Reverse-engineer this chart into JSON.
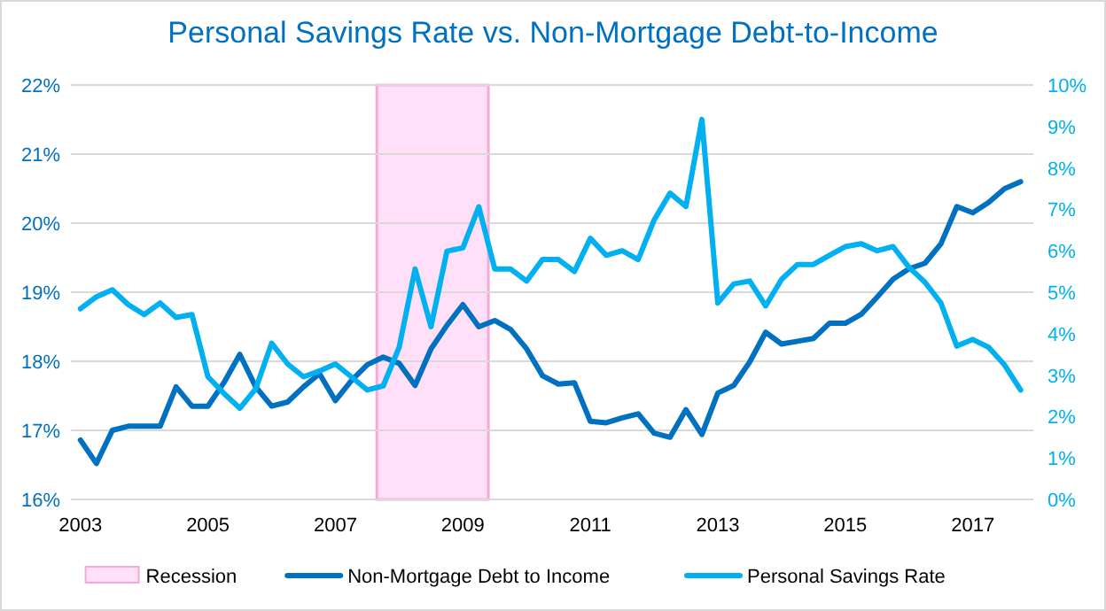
{
  "chart_data": {
    "type": "line",
    "title": "Personal Savings Rate vs. Non-Mortgage Debt-to-Income",
    "x": [
      2003,
      2003.25,
      2003.5,
      2003.75,
      2004,
      2004.25,
      2004.5,
      2004.75,
      2005,
      2005.25,
      2005.5,
      2005.75,
      2006,
      2006.25,
      2006.5,
      2006.75,
      2007,
      2007.25,
      2007.5,
      2007.75,
      2008,
      2008.25,
      2008.5,
      2008.75,
      2009,
      2009.25,
      2009.5,
      2009.75,
      2010,
      2010.25,
      2010.5,
      2010.75,
      2011,
      2011.25,
      2011.5,
      2011.75,
      2012,
      2012.25,
      2012.5,
      2012.75,
      2013,
      2013.25,
      2013.5,
      2013.75,
      2014,
      2014.25,
      2014.5,
      2014.75,
      2015,
      2015.25,
      2015.5,
      2015.75,
      2016,
      2016.25,
      2016.5,
      2016.75,
      2017,
      2017.25,
      2017.5,
      2017.75
    ],
    "series": [
      {
        "name": "Non-Mortgage Debt to Income",
        "color": "#0070c0",
        "values": [
          16.86,
          16.52,
          17.0,
          17.06,
          17.06,
          17.06,
          17.63,
          17.35,
          17.35,
          17.69,
          18.1,
          17.63,
          17.35,
          17.41,
          17.63,
          17.82,
          17.43,
          17.72,
          17.95,
          18.06,
          17.97,
          17.65,
          18.18,
          18.52,
          18.82,
          18.5,
          18.59,
          18.46,
          18.18,
          17.79,
          17.67,
          17.69,
          17.13,
          17.11,
          17.18,
          17.24,
          16.96,
          16.9,
          17.3,
          16.94,
          17.54,
          17.65,
          17.99,
          18.42,
          18.25,
          18.29,
          18.33,
          18.55,
          18.55,
          18.68,
          18.93,
          19.19,
          19.34,
          19.42,
          19.7,
          20.24,
          20.15,
          20.3,
          20.5,
          20.6
        ]
      },
      {
        "name": "Personal Savings Rate",
        "color": "#00b0f0",
        "axis": "y2",
        "values": [
          4.6,
          4.89,
          5.06,
          4.7,
          4.46,
          4.74,
          4.39,
          4.46,
          2.96,
          2.56,
          2.2,
          2.67,
          3.77,
          3.27,
          2.96,
          3.1,
          3.27,
          2.96,
          2.64,
          2.74,
          3.67,
          5.56,
          4.17,
          5.99,
          6.07,
          7.06,
          5.56,
          5.56,
          5.27,
          5.79,
          5.79,
          5.5,
          6.3,
          5.89,
          6.0,
          5.79,
          6.74,
          7.39,
          7.07,
          9.17,
          4.74,
          5.2,
          5.27,
          4.67,
          5.31,
          5.67,
          5.67,
          5.89,
          6.1,
          6.17,
          6.0,
          6.1,
          5.6,
          5.24,
          4.74,
          3.7,
          3.86,
          3.67,
          3.24,
          2.64
        ]
      }
    ],
    "bands": [
      {
        "axis": "x",
        "from": 2007.65,
        "to": 2009.4,
        "label": "Recession",
        "color": "#ffe0f8"
      }
    ],
    "xlim": [
      2002.85,
      2017.95
    ],
    "xticks": [
      2003,
      2005,
      2007,
      2009,
      2011,
      2013,
      2015,
      2017
    ],
    "ylim": [
      16,
      22
    ],
    "yticks": [
      {
        "value": 16,
        "label": "16%"
      },
      {
        "value": 17,
        "label": "17%"
      },
      {
        "value": 18,
        "label": "18%"
      },
      {
        "value": 19,
        "label": "19%"
      },
      {
        "value": 20,
        "label": "20%"
      },
      {
        "value": 21,
        "label": "21%"
      },
      {
        "value": 22,
        "label": "22%"
      }
    ],
    "y2lim": [
      0,
      10
    ],
    "y2ticks": [
      {
        "value": 0,
        "label": "0%"
      },
      {
        "value": 1,
        "label": "1%"
      },
      {
        "value": 2,
        "label": "2%"
      },
      {
        "value": 3,
        "label": "3%"
      },
      {
        "value": 4,
        "label": "4%"
      },
      {
        "value": 5,
        "label": "5%"
      },
      {
        "value": 6,
        "label": "6%"
      },
      {
        "value": 7,
        "label": "7%"
      },
      {
        "value": 8,
        "label": "8%"
      },
      {
        "value": 9,
        "label": "9%"
      },
      {
        "value": 10,
        "label": "10%"
      }
    ],
    "grid": "y",
    "legend": "bottom",
    "marker": "none",
    "line_style": "solid"
  }
}
